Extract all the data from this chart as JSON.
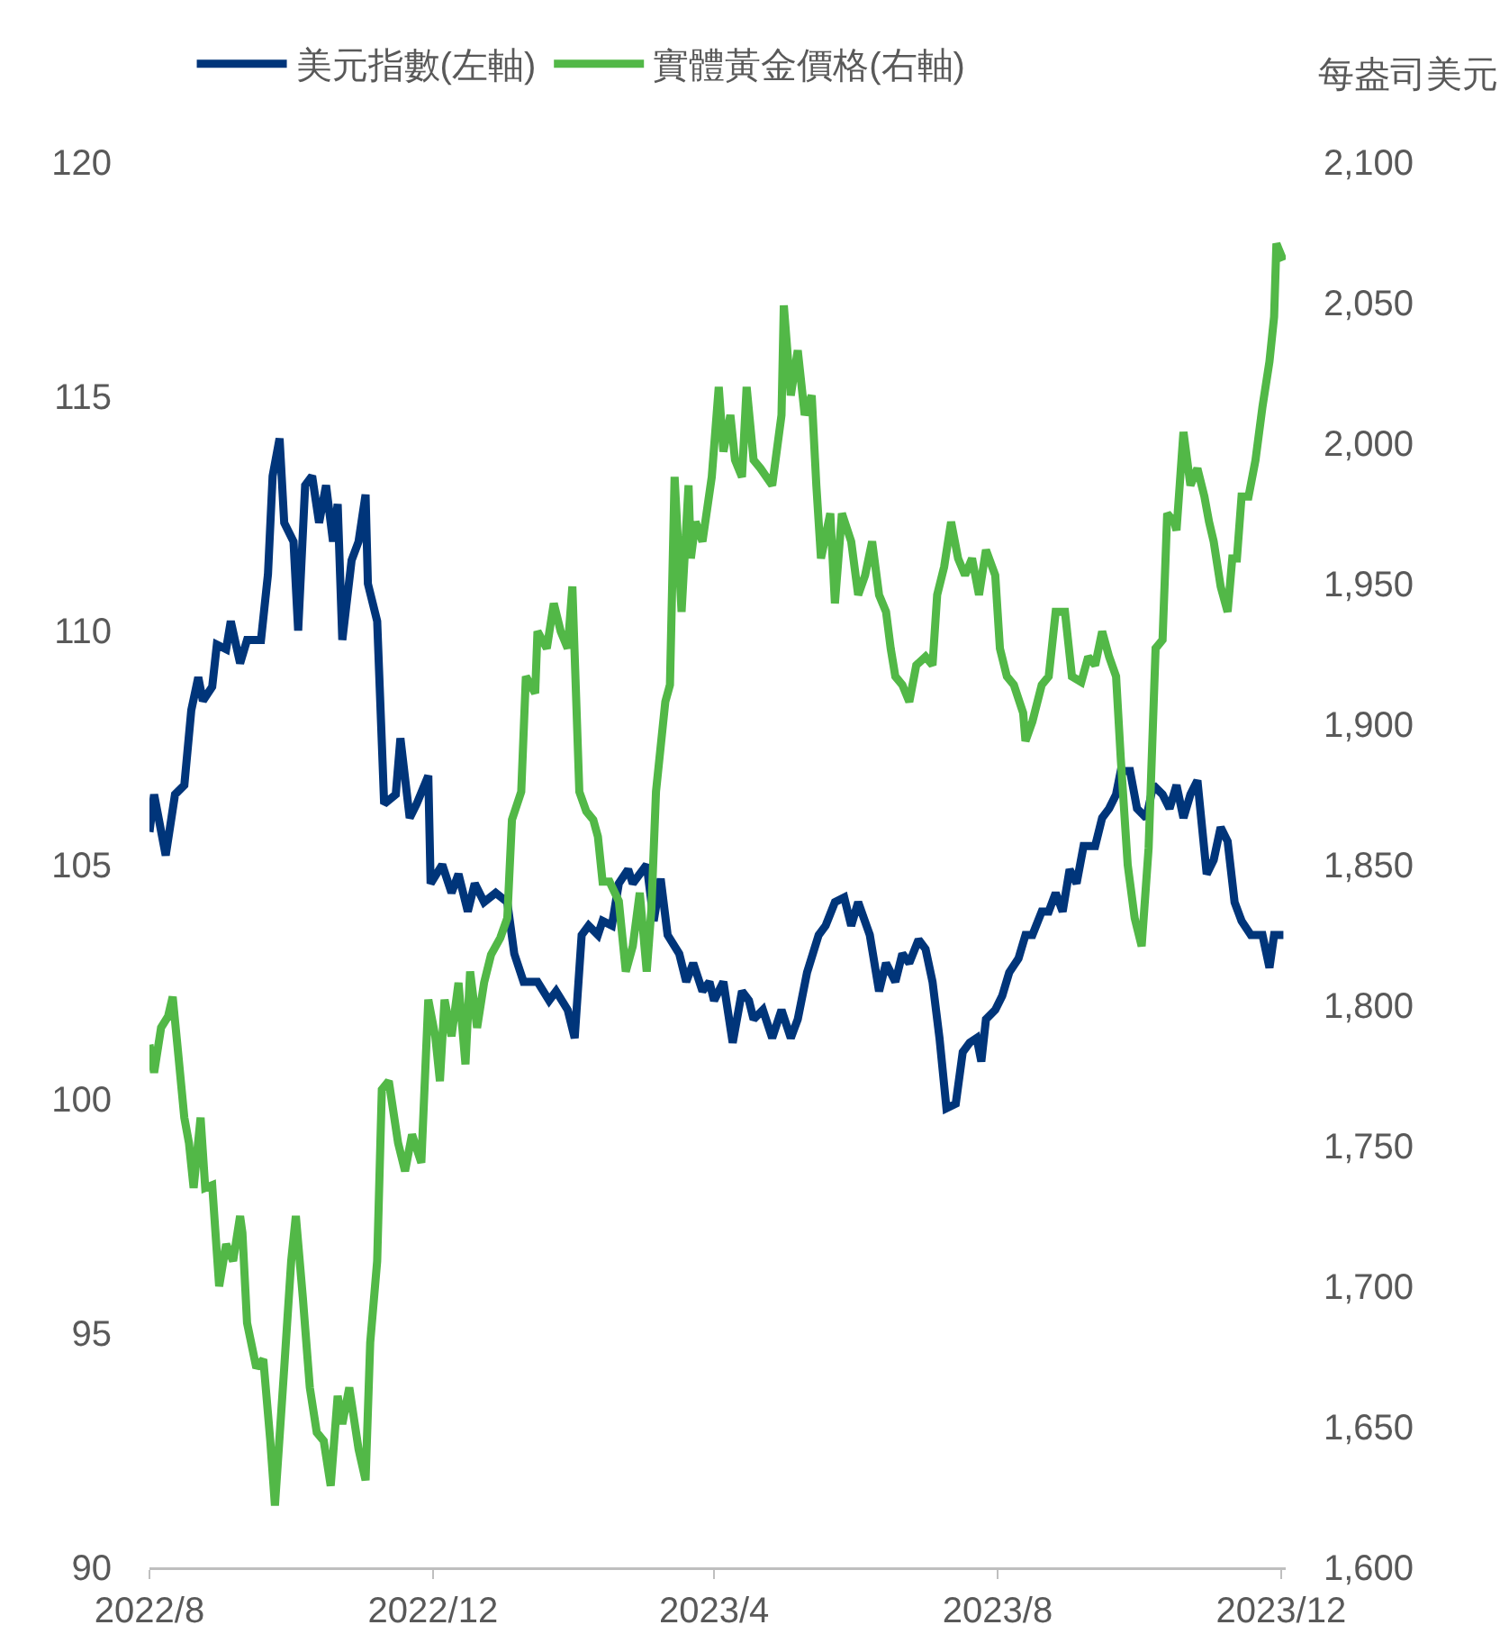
{
  "chart_data": {
    "type": "line",
    "y2label": "每盎司美元",
    "legend": "top",
    "grid": false,
    "line_style": "solid",
    "marker": "none",
    "xlim": [
      "2022-08-01",
      "2023-12-03"
    ],
    "xticks": [
      {
        "value": "2022-08",
        "label": "2022/8"
      },
      {
        "value": "2022-12",
        "label": "2022/12"
      },
      {
        "value": "2023-04",
        "label": "2023/4"
      },
      {
        "value": "2023-08",
        "label": "2023/8"
      },
      {
        "value": "2023-12",
        "label": "2023/12"
      }
    ],
    "ylim": [
      90,
      120
    ],
    "yticks": [
      90,
      95,
      100,
      105,
      110,
      115,
      120
    ],
    "y2lim": [
      1600,
      2100
    ],
    "y2ticks": [
      {
        "value": 1600,
        "label": "1,600"
      },
      {
        "value": 1650,
        "label": "1,650"
      },
      {
        "value": 1700,
        "label": "1,700"
      },
      {
        "value": 1750,
        "label": "1,750"
      },
      {
        "value": 1800,
        "label": "1,800"
      },
      {
        "value": 1850,
        "label": "1,850"
      },
      {
        "value": 1900,
        "label": "1,900"
      },
      {
        "value": 1950,
        "label": "1,950"
      },
      {
        "value": 2000,
        "label": "2,000"
      },
      {
        "value": 2050,
        "label": "2,050"
      },
      {
        "value": 2100,
        "label": "2,100"
      }
    ],
    "series": [
      {
        "name": "美元指數(左軸)",
        "color": "#00357a",
        "axis": "y",
        "x": [
          "2022-08-01",
          "2022-08-03",
          "2022-08-08",
          "2022-08-12",
          "2022-08-16",
          "2022-08-19",
          "2022-08-22",
          "2022-08-24",
          "2022-08-28",
          "2022-08-30",
          "2022-09-03",
          "2022-09-05",
          "2022-09-09",
          "2022-09-12",
          "2022-09-18",
          "2022-09-21",
          "2022-09-23",
          "2022-09-26",
          "2022-09-28",
          "2022-10-02",
          "2022-10-04",
          "2022-10-07",
          "2022-10-10",
          "2022-10-13",
          "2022-10-16",
          "2022-10-19",
          "2022-10-21",
          "2022-10-23",
          "2022-10-27",
          "2022-10-30",
          "2022-11-02",
          "2022-11-03",
          "2022-11-07",
          "2022-11-10",
          "2022-11-15",
          "2022-11-17",
          "2022-11-21",
          "2022-11-24",
          "2022-11-29",
          "2022-11-30",
          "2022-12-05",
          "2022-12-09",
          "2022-12-12",
          "2022-12-16",
          "2022-12-19",
          "2022-12-23",
          "2022-12-28",
          "2023-01-02",
          "2023-01-05",
          "2023-01-09",
          "2023-01-15",
          "2023-01-20",
          "2023-01-23",
          "2023-01-28",
          "2023-01-31",
          "2023-02-03",
          "2023-02-06",
          "2023-02-10",
          "2023-02-12",
          "2023-02-16",
          "2023-02-19",
          "2023-02-23",
          "2023-02-25",
          "2023-03-03",
          "2023-03-06",
          "2023-03-09",
          "2023-03-12",
          "2023-03-17",
          "2023-03-20",
          "2023-03-23",
          "2023-03-27",
          "2023-03-30",
          "2023-04-01",
          "2023-04-05",
          "2023-04-09",
          "2023-04-13",
          "2023-04-16",
          "2023-04-18",
          "2023-04-22",
          "2023-04-26",
          "2023-04-30",
          "2023-05-04",
          "2023-05-07",
          "2023-05-11",
          "2023-05-16",
          "2023-05-19",
          "2023-05-23",
          "2023-05-27",
          "2023-05-30",
          "2023-06-02",
          "2023-06-07",
          "2023-06-11",
          "2023-06-14",
          "2023-06-18",
          "2023-06-21",
          "2023-06-24",
          "2023-06-28",
          "2023-07-01",
          "2023-07-04",
          "2023-07-07",
          "2023-07-10",
          "2023-07-14",
          "2023-07-17",
          "2023-07-20",
          "2023-07-23",
          "2023-07-25",
          "2023-07-27",
          "2023-07-31",
          "2023-08-03",
          "2023-08-06",
          "2023-08-10",
          "2023-08-13",
          "2023-08-16",
          "2023-08-20",
          "2023-08-23",
          "2023-08-26",
          "2023-08-29",
          "2023-09-01",
          "2023-09-04",
          "2023-09-07",
          "2023-09-12",
          "2023-09-15",
          "2023-09-18",
          "2023-09-21",
          "2023-09-23",
          "2023-09-27",
          "2023-09-30",
          "2023-10-04",
          "2023-10-07",
          "2023-10-11",
          "2023-10-14",
          "2023-10-17",
          "2023-10-20",
          "2023-10-23",
          "2023-10-26",
          "2023-10-30",
          "2023-11-02",
          "2023-11-05",
          "2023-11-08",
          "2023-11-11",
          "2023-11-14",
          "2023-11-18",
          "2023-11-23",
          "2023-11-26",
          "2023-11-28",
          "2023-12-02"
        ],
        "values": [
          105.7,
          106.5,
          105.2,
          106.5,
          106.7,
          108.3,
          109.0,
          108.5,
          108.8,
          109.7,
          109.6,
          110.2,
          109.3,
          109.8,
          109.8,
          111.2,
          113.3,
          114.1,
          112.3,
          111.9,
          110.0,
          113.1,
          113.3,
          112.3,
          113.1,
          111.9,
          112.7,
          109.8,
          111.5,
          111.9,
          112.9,
          111.0,
          110.2,
          106.3,
          106.5,
          107.7,
          106.0,
          106.3,
          106.9,
          104.6,
          105.0,
          104.4,
          104.8,
          104.0,
          104.6,
          104.2,
          104.4,
          104.2,
          103.1,
          102.5,
          102.5,
          102.1,
          102.3,
          101.9,
          101.3,
          103.5,
          103.7,
          103.5,
          103.8,
          103.7,
          104.6,
          104.9,
          104.6,
          105.0,
          103.8,
          104.7,
          103.5,
          103.1,
          102.5,
          102.9,
          102.3,
          102.5,
          102.1,
          102.5,
          101.2,
          102.3,
          102.1,
          101.7,
          101.9,
          101.3,
          101.9,
          101.3,
          101.7,
          102.7,
          103.5,
          103.7,
          104.2,
          104.3,
          103.7,
          104.2,
          103.5,
          102.3,
          102.9,
          102.5,
          103.1,
          102.9,
          103.4,
          103.2,
          102.5,
          101.3,
          99.8,
          99.9,
          101.0,
          101.2,
          101.3,
          100.8,
          101.7,
          101.9,
          102.2,
          102.7,
          103.0,
          103.5,
          103.5,
          104.0,
          104.0,
          104.4,
          104.0,
          104.9,
          104.6,
          105.4,
          105.4,
          106.0,
          106.2,
          106.5,
          107.0,
          107.0,
          106.2,
          106.0,
          106.7,
          106.5,
          106.2,
          106.7,
          106.0,
          106.5,
          106.8,
          104.8,
          105.1,
          105.8,
          105.5,
          104.2,
          103.8,
          103.5,
          103.5,
          102.8,
          103.5,
          103.5
        ]
      },
      {
        "name": "實體黃金價格(右軸)",
        "color": "#52b847",
        "axis": "y2",
        "x": [
          "2022-08-01",
          "2022-08-03",
          "2022-08-06",
          "2022-08-09",
          "2022-08-11",
          "2022-08-13",
          "2022-08-16",
          "2022-08-18",
          "2022-08-20",
          "2022-08-23",
          "2022-08-25",
          "2022-08-28",
          "2022-08-31",
          "2022-09-03",
          "2022-09-06",
          "2022-09-09",
          "2022-09-10",
          "2022-09-12",
          "2022-09-16",
          "2022-09-19",
          "2022-09-22",
          "2022-09-24",
          "2022-09-28",
          "2022-10-01",
          "2022-10-03",
          "2022-10-06",
          "2022-10-09",
          "2022-10-12",
          "2022-10-15",
          "2022-10-18",
          "2022-10-21",
          "2022-10-23",
          "2022-10-26",
          "2022-10-30",
          "2022-11-02",
          "2022-11-04",
          "2022-11-07",
          "2022-11-09",
          "2022-11-12",
          "2022-11-16",
          "2022-11-19",
          "2022-11-22",
          "2022-11-26",
          "2022-11-29",
          "2022-12-02",
          "2022-12-04",
          "2022-12-06",
          "2022-12-09",
          "2022-12-12",
          "2022-12-15",
          "2022-12-17",
          "2022-12-20",
          "2022-12-23",
          "2022-12-26",
          "2022-12-30",
          "2023-01-02",
          "2023-01-04",
          "2023-01-08",
          "2023-01-10",
          "2023-01-14",
          "2023-01-15",
          "2023-01-19",
          "2023-01-22",
          "2023-01-25",
          "2023-01-28",
          "2023-01-30",
          "2023-02-02",
          "2023-02-05",
          "2023-02-08",
          "2023-02-10",
          "2023-02-12",
          "2023-02-15",
          "2023-02-19",
          "2023-02-22",
          "2023-02-25",
          "2023-02-28",
          "2023-03-03",
          "2023-03-05",
          "2023-03-07",
          "2023-03-11",
          "2023-03-13",
          "2023-03-15",
          "2023-03-18",
          "2023-03-21",
          "2023-03-22",
          "2023-03-24",
          "2023-03-27",
          "2023-03-31",
          "2023-04-03",
          "2023-04-05",
          "2023-04-08",
          "2023-04-10",
          "2023-04-13",
          "2023-04-15",
          "2023-04-18",
          "2023-04-21",
          "2023-04-26",
          "2023-04-30",
          "2023-05-01",
          "2023-05-04",
          "2023-05-07",
          "2023-05-10",
          "2023-05-13",
          "2023-05-15",
          "2023-05-17",
          "2023-05-21",
          "2023-05-23",
          "2023-05-26",
          "2023-05-30",
          "2023-06-02",
          "2023-06-05",
          "2023-06-08",
          "2023-06-11",
          "2023-06-14",
          "2023-06-16",
          "2023-06-18",
          "2023-06-21",
          "2023-06-24",
          "2023-06-27",
          "2023-07-01",
          "2023-07-04",
          "2023-07-06",
          "2023-07-09",
          "2023-07-12",
          "2023-07-15",
          "2023-07-18",
          "2023-07-21",
          "2023-07-24",
          "2023-07-27",
          "2023-07-31",
          "2023-08-02",
          "2023-08-05",
          "2023-08-08",
          "2023-08-12",
          "2023-08-13",
          "2023-08-16",
          "2023-08-20",
          "2023-08-23",
          "2023-08-26",
          "2023-08-30",
          "2023-09-02",
          "2023-09-06",
          "2023-09-09",
          "2023-09-12",
          "2023-09-15",
          "2023-09-18",
          "2023-09-21",
          "2023-09-23",
          "2023-09-26",
          "2023-09-29",
          "2023-10-02",
          "2023-10-05",
          "2023-10-08",
          "2023-10-11",
          "2023-10-13",
          "2023-10-16",
          "2023-10-17",
          "2023-10-20",
          "2023-10-23",
          "2023-10-26",
          "2023-10-29",
          "2023-10-31",
          "2023-11-02",
          "2023-11-05",
          "2023-11-08",
          "2023-11-10",
          "2023-11-12",
          "2023-11-14",
          "2023-11-17",
          "2023-11-20",
          "2023-11-23",
          "2023-11-26",
          "2023-11-28",
          "2023-11-29",
          "2023-12-02"
        ],
        "values": [
          1786,
          1776,
          1792,
          1796,
          1803,
          1786,
          1760,
          1751,
          1735,
          1760,
          1735,
          1736,
          1700,
          1715,
          1709,
          1725,
          1719,
          1687,
          1671,
          1674,
          1645,
          1622,
          1671,
          1709,
          1725,
          1696,
          1664,
          1648,
          1645,
          1629,
          1661,
          1651,
          1664,
          1642,
          1631,
          1680,
          1709,
          1770,
          1773,
          1751,
          1741,
          1754,
          1744,
          1802,
          1789,
          1773,
          1802,
          1789,
          1808,
          1779,
          1812,
          1792,
          1808,
          1818,
          1824,
          1831,
          1866,
          1876,
          1917,
          1911,
          1933,
          1927,
          1943,
          1933,
          1927,
          1949,
          1876,
          1869,
          1866,
          1860,
          1844,
          1844,
          1837,
          1812,
          1821,
          1840,
          1812,
          1834,
          1876,
          1908,
          1914,
          1988,
          1940,
          1985,
          1959,
          1972,
          1965,
          1988,
          2020,
          1997,
          2010,
          1994,
          1988,
          2020,
          1994,
          1991,
          1985,
          2010,
          2049,
          2017,
          2033,
          2010,
          2017,
          1985,
          1959,
          1975,
          1943,
          1975,
          1965,
          1946,
          1953,
          1965,
          1946,
          1940,
          1927,
          1917,
          1914,
          1908,
          1921,
          1924,
          1921,
          1946,
          1956,
          1972,
          1959,
          1953,
          1959,
          1946,
          1962,
          1953,
          1927,
          1917,
          1914,
          1904,
          1894,
          1901,
          1914,
          1917,
          1940,
          1940,
          1917,
          1915,
          1924,
          1921,
          1933,
          1924,
          1917,
          1888,
          1850,
          1831,
          1821,
          1856,
          1927,
          1930,
          1975,
          1972,
          1969,
          2004,
          1985,
          1991,
          1981,
          1972,
          1965,
          1949,
          1940,
          1959,
          1959,
          1981,
          1981,
          1994,
          2013,
          2029,
          2045,
          2071,
          2065
        ]
      }
    ]
  }
}
